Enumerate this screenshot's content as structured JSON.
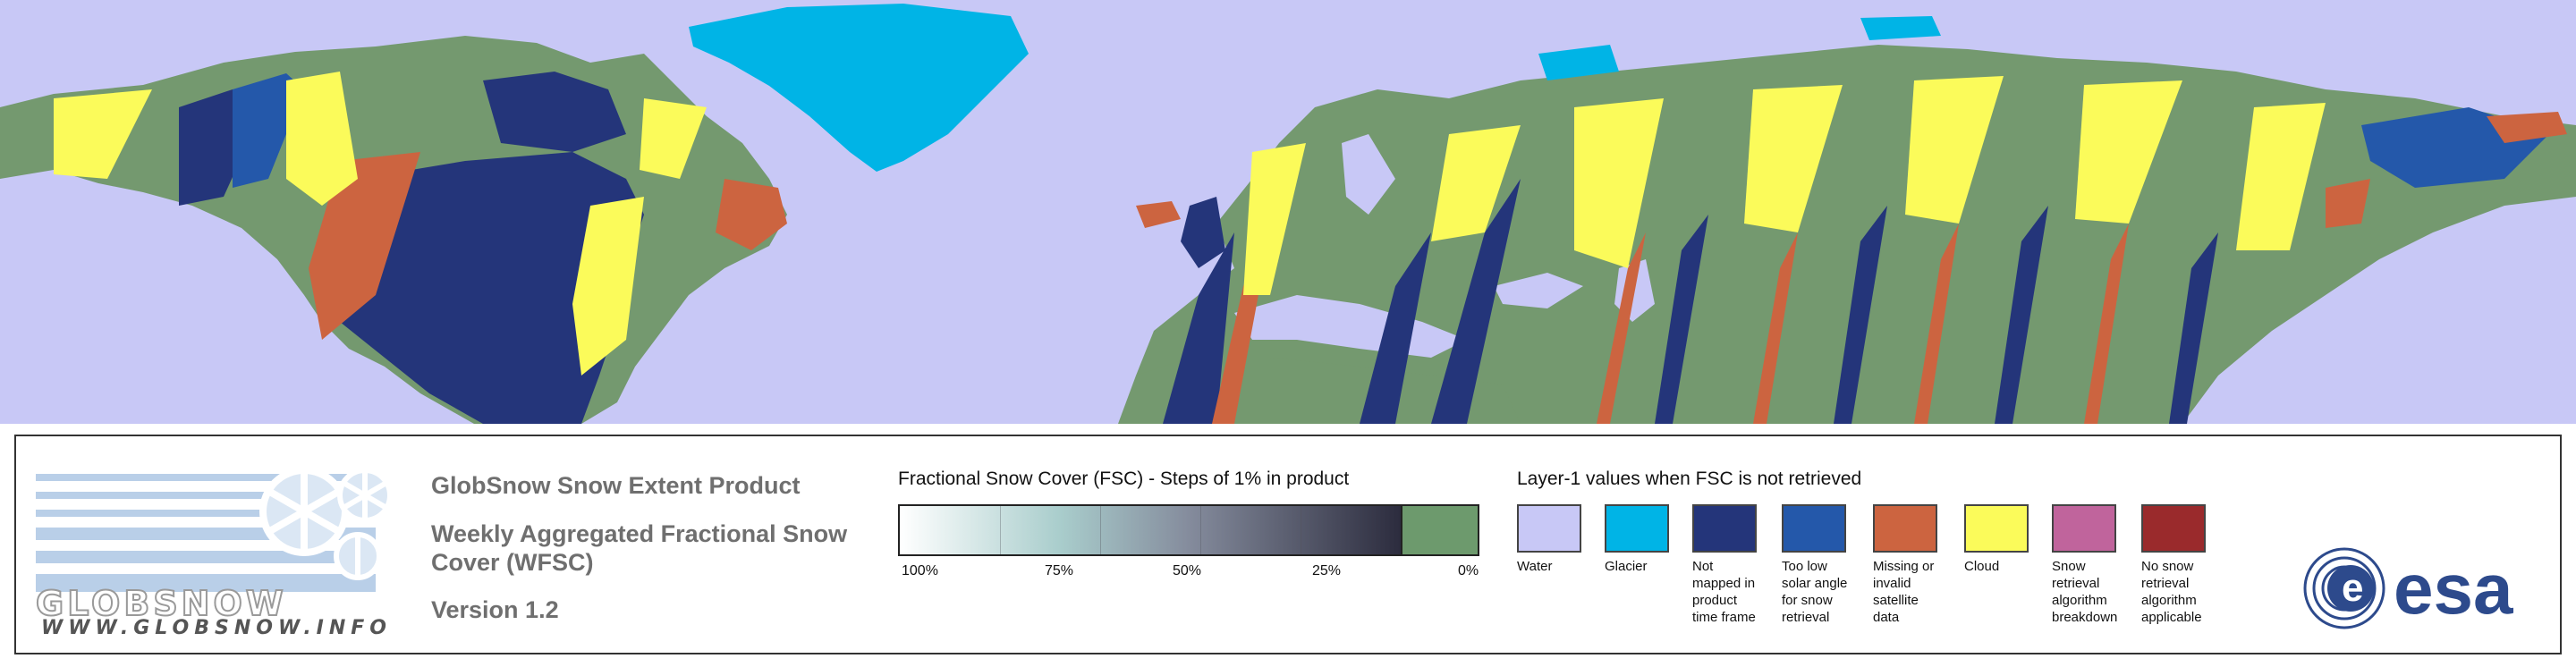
{
  "map": {
    "colors": {
      "ocean": "#c8c8f6",
      "snow_free_land": "#74996f",
      "glacier": "#00b4e6",
      "not_mapped": "#24357a",
      "low_solar_angle": "#2458aa",
      "missing_data": "#cc6440",
      "cloud": "#fbfb5a"
    }
  },
  "legend": {
    "logo": {
      "wordmark": "GLOBSNOW",
      "url": "WWW.GLOBSNOW.INFO"
    },
    "product_title": "GlobSnow Snow Extent Product",
    "product_subtitle_line1": "Weekly Aggregated Fractional Snow",
    "product_subtitle_line2": "Cover (WFSC)",
    "version": "Version 1.2",
    "fsc": {
      "title": "Fractional Snow Cover (FSC) - Steps of 1% in product",
      "labels": [
        "100%",
        "75%",
        "50%",
        "25%",
        "0%"
      ],
      "colors": {
        "high": "#2c2c3e",
        "mid": "#848b9c",
        "low": "#ffffff",
        "zero": "#6d9a6d"
      }
    },
    "layer1": {
      "title": "Layer-1 values when FSC is not retrieved",
      "items": [
        {
          "color": "#c8c8f6",
          "lines": [
            "Water"
          ]
        },
        {
          "color": "#00b4e6",
          "lines": [
            "Glacier"
          ]
        },
        {
          "color": "#24357a",
          "lines": [
            "Not",
            "mapped in",
            "product",
            "time frame"
          ]
        },
        {
          "color": "#2458aa",
          "lines": [
            "Too low",
            "solar angle",
            "for snow",
            "retrieval"
          ]
        },
        {
          "color": "#cc6440",
          "lines": [
            "Missing or",
            "invalid satellite",
            "data"
          ]
        },
        {
          "color": "#fbfb5a",
          "lines": [
            "Cloud"
          ]
        },
        {
          "color": "#c0649c",
          "lines": [
            "Snow retrieval",
            "algorithm",
            "breakdown"
          ]
        },
        {
          "color": "#9a2a2c",
          "lines": [
            "No snow",
            "retrieval",
            "algorithm",
            "applicable"
          ]
        }
      ]
    },
    "esa_logo": {
      "text": "esa",
      "color": "#2d4a8c"
    }
  }
}
